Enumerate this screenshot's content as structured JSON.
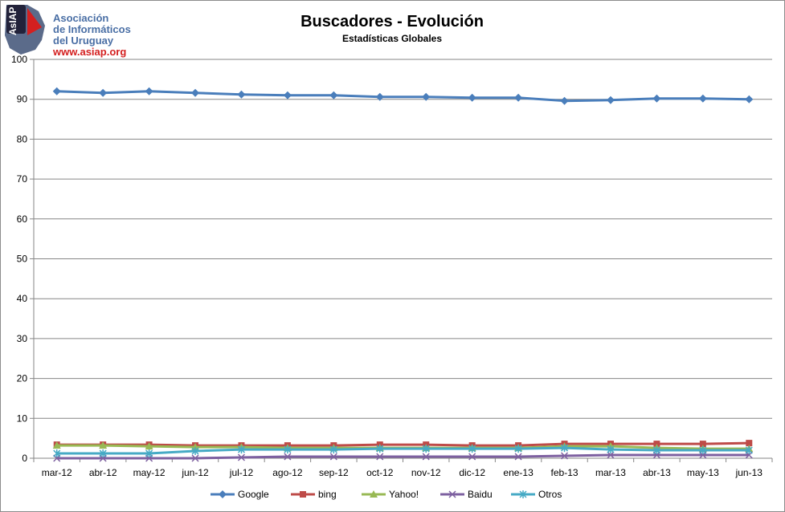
{
  "logo": {
    "badge_text": "AsIAP",
    "line1": "Asociación",
    "line2": "de Informáticos",
    "line3": "del Uruguay",
    "url": "www.asiap.org"
  },
  "chart_data": {
    "type": "line",
    "title": "Buscadores - Evolución",
    "subtitle": "Estadísticas Globales",
    "xlabel": "",
    "ylabel": "",
    "ylim": [
      0,
      100
    ],
    "yticks": [
      0,
      10,
      20,
      30,
      40,
      50,
      60,
      70,
      80,
      90,
      100
    ],
    "grid": true,
    "legend": "bottom",
    "categories": [
      "mar-12",
      "abr-12",
      "may-12",
      "jun-12",
      "jul-12",
      "ago-12",
      "sep-12",
      "oct-12",
      "nov-12",
      "dic-12",
      "ene-13",
      "feb-13",
      "mar-13",
      "abr-13",
      "may-13",
      "jun-13"
    ],
    "series": [
      {
        "name": "Google",
        "color": "#4a7ebb",
        "marker": "diamond",
        "values": [
          92.0,
          91.6,
          92.0,
          91.6,
          91.2,
          91.0,
          91.0,
          90.6,
          90.6,
          90.4,
          90.4,
          89.6,
          89.8,
          90.2,
          90.2,
          90.0
        ]
      },
      {
        "name": "bing",
        "color": "#be4b48",
        "marker": "square",
        "values": [
          3.4,
          3.4,
          3.4,
          3.2,
          3.2,
          3.2,
          3.2,
          3.4,
          3.4,
          3.2,
          3.2,
          3.6,
          3.6,
          3.6,
          3.6,
          3.8
        ]
      },
      {
        "name": "Yahoo!",
        "color": "#98b954",
        "marker": "triangle",
        "values": [
          3.2,
          3.2,
          3.0,
          2.8,
          2.8,
          2.6,
          2.6,
          2.6,
          2.6,
          2.6,
          2.6,
          3.0,
          3.0,
          2.6,
          2.4,
          2.4
        ]
      },
      {
        "name": "Baidu",
        "color": "#7d60a0",
        "marker": "x",
        "values": [
          0.0,
          0.0,
          0.0,
          0.0,
          0.2,
          0.4,
          0.4,
          0.4,
          0.4,
          0.4,
          0.4,
          0.6,
          0.8,
          0.8,
          0.8,
          0.8
        ]
      },
      {
        "name": "Otros",
        "color": "#46aac5",
        "marker": "star",
        "values": [
          1.2,
          1.2,
          1.2,
          1.8,
          2.2,
          2.2,
          2.2,
          2.4,
          2.4,
          2.4,
          2.4,
          2.6,
          2.2,
          2.0,
          2.0,
          2.0
        ]
      }
    ]
  }
}
